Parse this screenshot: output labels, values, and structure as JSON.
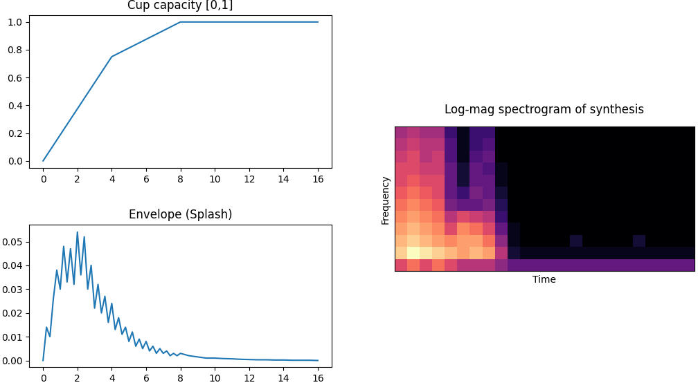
{
  "chart_data": [
    {
      "type": "line",
      "title": "Cup capacity [0,1]",
      "x": [
        0,
        4,
        8,
        16
      ],
      "values": [
        0,
        0.75,
        1,
        1
      ],
      "color": "#1f77b4",
      "xlim": [
        -0.8,
        16.8
      ],
      "ylim": [
        -0.05,
        1.05
      ],
      "xticks": [
        0,
        2,
        4,
        6,
        8,
        10,
        12,
        14,
        16
      ],
      "yticks": [
        {
          "value": 0,
          "label": "0.0"
        },
        0.2,
        0.4,
        0.6,
        0.8,
        {
          "value": 1,
          "label": "1.0"
        }
      ]
    },
    {
      "type": "line",
      "title": "Envelope (Splash)",
      "x": [
        0,
        0.2,
        0.4,
        0.6,
        0.8,
        1.0,
        1.2,
        1.4,
        1.6,
        1.8,
        2.0,
        2.2,
        2.4,
        2.6,
        2.8,
        3.0,
        3.2,
        3.4,
        3.6,
        3.8,
        4.0,
        4.2,
        4.4,
        4.6,
        4.8,
        5.0,
        5.2,
        5.4,
        5.6,
        5.8,
        6.0,
        6.2,
        6.4,
        6.6,
        6.8,
        7.0,
        7.2,
        7.4,
        7.6,
        7.8,
        8.0,
        8.5,
        9,
        9.5,
        10,
        10.5,
        11,
        11.5,
        12,
        12.5,
        13,
        13.5,
        14,
        14.5,
        15,
        15.5,
        16
      ],
      "values": [
        0,
        0.014,
        0.01,
        0.026,
        0.038,
        0.03,
        0.048,
        0.033,
        0.047,
        0.032,
        0.054,
        0.036,
        0.052,
        0.03,
        0.04,
        0.022,
        0.032,
        0.02,
        0.027,
        0.016,
        0.024,
        0.013,
        0.018,
        0.011,
        0.014,
        0.008,
        0.012,
        0.006,
        0.009,
        0.005,
        0.008,
        0.004,
        0.006,
        0.003,
        0.005,
        0.003,
        0.004,
        0.002,
        0.003,
        0.002,
        0.003,
        0.002,
        0.0015,
        0.001,
        0.001,
        0.0008,
        0.0007,
        0.0005,
        0.0004,
        0.0003,
        0.0003,
        0.0002,
        0.0002,
        0.0001,
        0.0001,
        0.0001,
        0
      ],
      "color": "#1f77b4",
      "xlim": [
        -0.8,
        16.8
      ],
      "ylim": [
        -0.0027,
        0.0572
      ],
      "xticks": [
        0,
        2,
        4,
        6,
        8,
        10,
        12,
        14,
        16
      ],
      "yticks": [
        {
          "value": 0,
          "label": "0.00"
        },
        {
          "value": 0.01,
          "label": "0.01"
        },
        {
          "value": 0.02,
          "label": "0.02"
        },
        {
          "value": 0.03,
          "label": "0.03"
        },
        {
          "value": 0.04,
          "label": "0.04"
        },
        {
          "value": 0.05,
          "label": "0.05"
        }
      ]
    },
    {
      "type": "heatmap",
      "title": "Log-mag spectrogram of synthesis",
      "x_label": "Time",
      "y_label": "Frequency",
      "tick_labels": false,
      "cells": [
        [
          0.6,
          0.7,
          0.6,
          0.7,
          0.6,
          0.5,
          0.5,
          0.5,
          0.4,
          0.3,
          0.3,
          0.3,
          0.3,
          0.3,
          0.3,
          0.3,
          0.3,
          0.3,
          0.3,
          0.3,
          0.3,
          0.3,
          0.3,
          0.3
        ],
        [
          0.9,
          1.0,
          0.95,
          0.9,
          0.85,
          0.8,
          0.85,
          0.8,
          0.5,
          0.1,
          0.05,
          0.05,
          0.05,
          0.05,
          0.05,
          0.05,
          0.05,
          0.05,
          0.05,
          0.05,
          0.05,
          0.05,
          0.05,
          0.05
        ],
        [
          0.85,
          0.9,
          0.85,
          0.8,
          0.75,
          0.8,
          0.8,
          0.7,
          0.4,
          0.05,
          0,
          0,
          0,
          0,
          0.1,
          0,
          0,
          0,
          0,
          0.1,
          0,
          0,
          0,
          0
        ],
        [
          0.8,
          0.85,
          0.8,
          0.75,
          0.6,
          0.75,
          0.7,
          0.6,
          0.3,
          0.05,
          0,
          0,
          0,
          0,
          0,
          0,
          0,
          0,
          0,
          0,
          0,
          0,
          0,
          0
        ],
        [
          0.75,
          0.8,
          0.75,
          0.7,
          0.5,
          0.6,
          0.55,
          0.5,
          0.2,
          0,
          0,
          0,
          0,
          0,
          0,
          0,
          0,
          0,
          0,
          0,
          0,
          0,
          0,
          0
        ],
        [
          0.7,
          0.75,
          0.7,
          0.65,
          0.35,
          0.3,
          0.3,
          0.35,
          0.15,
          0,
          0,
          0,
          0,
          0,
          0,
          0,
          0,
          0,
          0,
          0,
          0,
          0,
          0,
          0
        ],
        [
          0.65,
          0.7,
          0.65,
          0.6,
          0.3,
          0.2,
          0.35,
          0.3,
          0.1,
          0,
          0,
          0,
          0,
          0,
          0,
          0,
          0,
          0,
          0,
          0,
          0,
          0,
          0,
          0
        ],
        [
          0.6,
          0.65,
          0.6,
          0.6,
          0.3,
          0.1,
          0.3,
          0.3,
          0.05,
          0,
          0,
          0,
          0,
          0,
          0,
          0,
          0,
          0,
          0,
          0,
          0,
          0,
          0,
          0
        ],
        [
          0.6,
          0.6,
          0.55,
          0.55,
          0.3,
          0.1,
          0.3,
          0.25,
          0.05,
          0,
          0,
          0,
          0,
          0,
          0,
          0,
          0,
          0,
          0,
          0,
          0,
          0,
          0,
          0
        ],
        [
          0.55,
          0.6,
          0.5,
          0.55,
          0.25,
          0.05,
          0.25,
          0.3,
          0,
          0,
          0,
          0,
          0,
          0,
          0,
          0,
          0,
          0,
          0,
          0,
          0,
          0,
          0,
          0
        ],
        [
          0.5,
          0.55,
          0.5,
          0.5,
          0.25,
          0.05,
          0.2,
          0.25,
          0,
          0,
          0,
          0,
          0,
          0,
          0,
          0,
          0,
          0,
          0,
          0,
          0,
          0,
          0,
          0
        ],
        [
          0.45,
          0.5,
          0.45,
          0.45,
          0.2,
          0.05,
          0.2,
          0.2,
          0,
          0,
          0,
          0,
          0,
          0,
          0,
          0,
          0,
          0,
          0,
          0,
          0,
          0,
          0,
          0
        ]
      ]
    }
  ]
}
